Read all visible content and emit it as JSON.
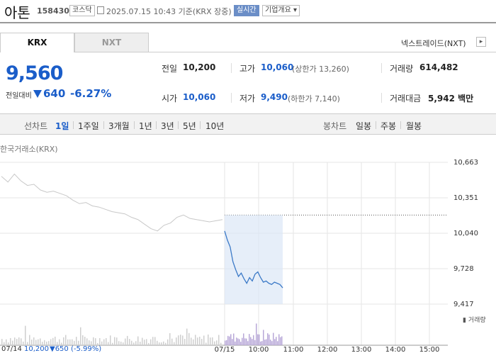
{
  "header": {
    "title": "아톤",
    "code": "158430",
    "market": "코스닥",
    "datetime": "2025.07.15 10:43 기준(KRX 장중)",
    "realtime": "실시간",
    "overview": "기업개요 ▾"
  },
  "tabs": {
    "krx": "KRX",
    "nxt": "NXT"
  },
  "nxt_link": "넥스트레이드(NXT)",
  "quote": {
    "price": "9,560",
    "change_label": "전일대비",
    "change_abs": "640",
    "change_pct": "-6.27%"
  },
  "stats": {
    "prev_label": "전일",
    "prev": "10,200",
    "high_label": "고가",
    "high": "10,060",
    "upper_limit": "(상한가 13,260)",
    "volume_label": "거래량",
    "volume": "614,482",
    "open_label": "시가",
    "open": "10,060",
    "low_label": "저가",
    "low": "9,490",
    "lower_limit": "(하한가 7,140)",
    "amount_label": "거래대금",
    "amount": "5,942 백만"
  },
  "period_bar": {
    "line_label": "선차트",
    "line_options": [
      "1일",
      "1주일",
      "3개월",
      "1년",
      "3년",
      "5년",
      "10년"
    ],
    "candle_label": "봉차트",
    "candle_options": [
      "일봉",
      "주봉",
      "월봉"
    ]
  },
  "chart": {
    "source": "한국거래소(KRX)",
    "volume_legend": "거래량",
    "prev_day_summary": {
      "date": "07/14",
      "close": "10,200",
      "change": "▼650 (-5.99%)"
    }
  },
  "chart_data": {
    "type": "line",
    "y_ticks": [
      "10,663",
      "10,351",
      "10,040",
      "9,728",
      "9,417"
    ],
    "ylim": [
      9417,
      10663
    ],
    "x_labels": [
      "07/15",
      "10:00",
      "11:00",
      "12:00",
      "13:00",
      "14:00",
      "15:00"
    ],
    "reference_price": 10200,
    "series": [
      {
        "values_prev_day": [
          10540,
          10490,
          10560,
          10500,
          10460,
          10470,
          10420,
          10400,
          10410,
          10390,
          10370,
          10330,
          10300,
          10310,
          10280,
          10270,
          10250,
          10230,
          10220,
          10210,
          10180,
          10160,
          10120,
          10080,
          10060,
          10110,
          10130,
          10180,
          10200,
          10170,
          10160,
          10150,
          10140,
          10150,
          10160
        ]
      },
      {
        "values_today": [
          10060,
          9980,
          9920,
          9790,
          9720,
          9660,
          9690,
          9640,
          9600,
          9650,
          9620,
          9680,
          9700,
          9650,
          9610,
          9620,
          9600,
          9590,
          9610,
          9600,
          9590,
          9560
        ]
      }
    ]
  },
  "colors": {
    "accent_blue": "#1a5dc9",
    "prev_line": "#c8c8c8",
    "today_line": "#3b79c7",
    "today_fill": "#dce7f7",
    "volume_bar": "#b8a8d8"
  }
}
